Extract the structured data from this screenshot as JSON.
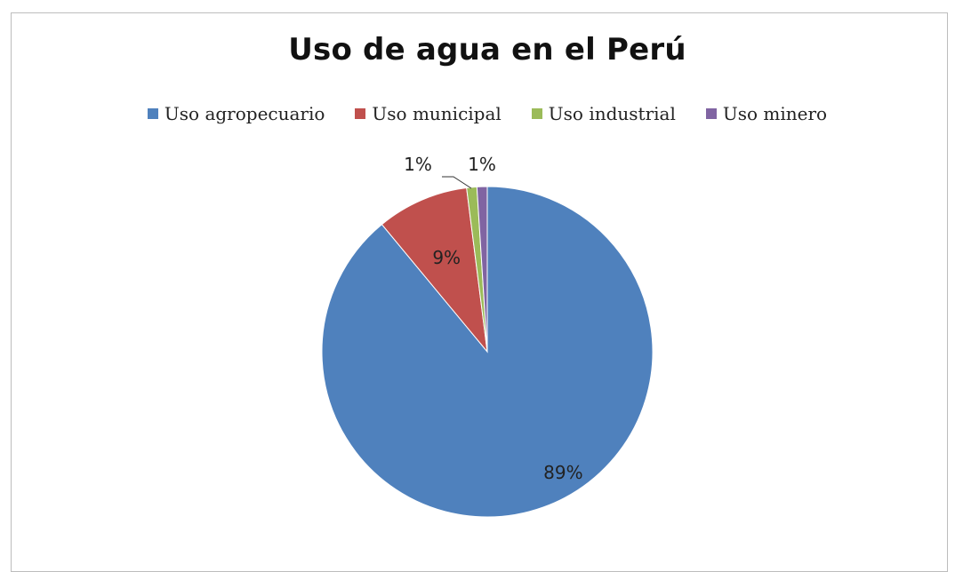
{
  "chart_data": {
    "type": "pie",
    "title": "Uso de agua en el Perú",
    "legend_position": "top",
    "slices": [
      {
        "name": "Uso agropecuario",
        "value": 89,
        "label": "89%",
        "color": "#4F81BD"
      },
      {
        "name": "Uso municipal",
        "value": 9,
        "label": "9%",
        "color": "#C0504D"
      },
      {
        "name": "Uso industrial",
        "value": 1,
        "label": "1%",
        "color": "#9BBB59"
      },
      {
        "name": "Uso minero",
        "value": 1,
        "label": "1%",
        "color": "#8064A2"
      }
    ]
  }
}
